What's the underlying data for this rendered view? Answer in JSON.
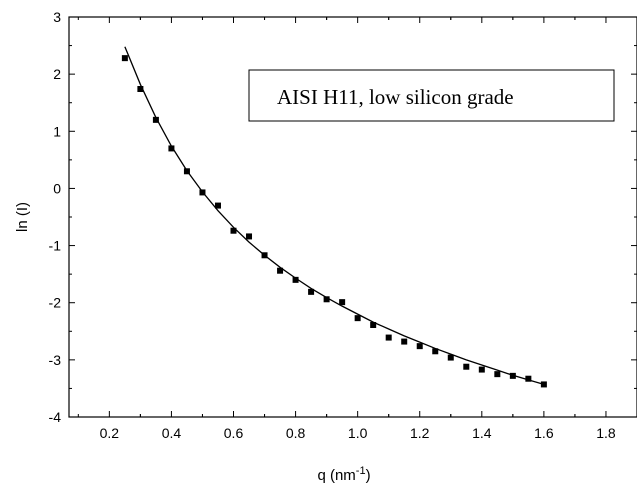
{
  "chart_data": {
    "type": "scatter",
    "xlabel": "q (nm",
    "xlabel_superscript": "-1",
    "xlabel_suffix": ")",
    "ylabel": "ln (I)",
    "xlim": [
      0.07,
      1.9
    ],
    "ylim": [
      -4,
      3
    ],
    "x_ticks": [
      "0.2",
      "0.4",
      "0.6",
      "0.8",
      "1.0",
      "1.2",
      "1.4",
      "1.6",
      "1.8"
    ],
    "y_ticks": [
      "-4",
      "-3",
      "-2",
      "-1",
      "0",
      "1",
      "2",
      "3"
    ],
    "grid": false,
    "legend": {
      "text": "AISI H11, low silicon grade",
      "placement": "top-right"
    },
    "series": [
      {
        "marker": "square",
        "x": [
          0.25,
          0.3,
          0.35,
          0.4,
          0.45,
          0.5,
          0.55,
          0.6,
          0.65,
          0.7,
          0.75,
          0.8,
          0.85,
          0.9,
          0.95,
          1.0,
          1.05,
          1.1,
          1.15,
          1.2,
          1.25,
          1.3,
          1.35,
          1.4,
          1.45,
          1.5,
          1.55,
          1.6
        ],
        "y": [
          2.28,
          1.74,
          1.2,
          0.7,
          0.3,
          -0.07,
          -0.3,
          -0.74,
          -0.84,
          -1.17,
          -1.44,
          -1.6,
          -1.81,
          -1.94,
          -1.99,
          -2.27,
          -2.39,
          -2.61,
          -2.68,
          -2.76,
          -2.85,
          -2.96,
          -3.12,
          -3.17,
          -3.25,
          -3.28,
          -3.33,
          -3.43
        ]
      },
      {
        "style": "line",
        "x": [
          0.25,
          0.3,
          0.35,
          0.4,
          0.45,
          0.5,
          0.55,
          0.6,
          0.65,
          0.7,
          0.75,
          0.8,
          0.85,
          0.9,
          0.95,
          1.0,
          1.05,
          1.1,
          1.15,
          1.2,
          1.25,
          1.3,
          1.35,
          1.4,
          1.45,
          1.5,
          1.55,
          1.6
        ],
        "y": [
          2.48,
          1.82,
          1.24,
          0.74,
          0.31,
          -0.06,
          -0.39,
          -0.68,
          -0.94,
          -1.17,
          -1.38,
          -1.57,
          -1.75,
          -1.91,
          -2.06,
          -2.2,
          -2.34,
          -2.46,
          -2.58,
          -2.69,
          -2.8,
          -2.9,
          -3.0,
          -3.09,
          -3.18,
          -3.27,
          -3.35,
          -3.43
        ]
      }
    ]
  }
}
